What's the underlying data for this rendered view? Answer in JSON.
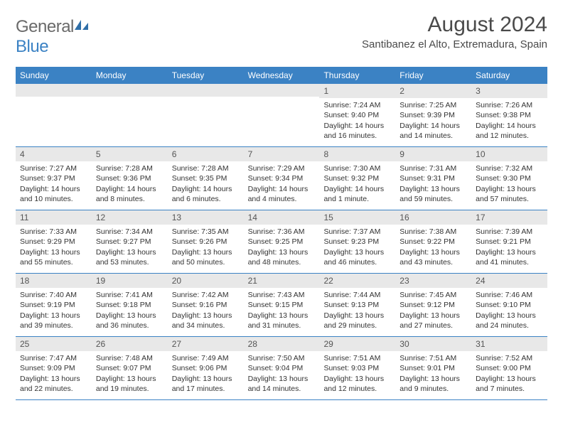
{
  "brand": {
    "general": "General",
    "blue": "Blue"
  },
  "title": "August 2024",
  "location": "Santibanez el Alto, Extremadura, Spain",
  "colors": {
    "header_bg": "#3b82c4",
    "header_fg": "#ffffff",
    "daynum_bg": "#e8e8e8",
    "rule": "#3b82c4",
    "text": "#333333",
    "title_color": "#4a4a4a"
  },
  "dow": [
    "Sunday",
    "Monday",
    "Tuesday",
    "Wednesday",
    "Thursday",
    "Friday",
    "Saturday"
  ],
  "weeks": [
    [
      {
        "n": "",
        "sr": "",
        "ss": "",
        "dl": ""
      },
      {
        "n": "",
        "sr": "",
        "ss": "",
        "dl": ""
      },
      {
        "n": "",
        "sr": "",
        "ss": "",
        "dl": ""
      },
      {
        "n": "",
        "sr": "",
        "ss": "",
        "dl": ""
      },
      {
        "n": "1",
        "sr": "Sunrise: 7:24 AM",
        "ss": "Sunset: 9:40 PM",
        "dl": "Daylight: 14 hours and 16 minutes."
      },
      {
        "n": "2",
        "sr": "Sunrise: 7:25 AM",
        "ss": "Sunset: 9:39 PM",
        "dl": "Daylight: 14 hours and 14 minutes."
      },
      {
        "n": "3",
        "sr": "Sunrise: 7:26 AM",
        "ss": "Sunset: 9:38 PM",
        "dl": "Daylight: 14 hours and 12 minutes."
      }
    ],
    [
      {
        "n": "4",
        "sr": "Sunrise: 7:27 AM",
        "ss": "Sunset: 9:37 PM",
        "dl": "Daylight: 14 hours and 10 minutes."
      },
      {
        "n": "5",
        "sr": "Sunrise: 7:28 AM",
        "ss": "Sunset: 9:36 PM",
        "dl": "Daylight: 14 hours and 8 minutes."
      },
      {
        "n": "6",
        "sr": "Sunrise: 7:28 AM",
        "ss": "Sunset: 9:35 PM",
        "dl": "Daylight: 14 hours and 6 minutes."
      },
      {
        "n": "7",
        "sr": "Sunrise: 7:29 AM",
        "ss": "Sunset: 9:34 PM",
        "dl": "Daylight: 14 hours and 4 minutes."
      },
      {
        "n": "8",
        "sr": "Sunrise: 7:30 AM",
        "ss": "Sunset: 9:32 PM",
        "dl": "Daylight: 14 hours and 1 minute."
      },
      {
        "n": "9",
        "sr": "Sunrise: 7:31 AM",
        "ss": "Sunset: 9:31 PM",
        "dl": "Daylight: 13 hours and 59 minutes."
      },
      {
        "n": "10",
        "sr": "Sunrise: 7:32 AM",
        "ss": "Sunset: 9:30 PM",
        "dl": "Daylight: 13 hours and 57 minutes."
      }
    ],
    [
      {
        "n": "11",
        "sr": "Sunrise: 7:33 AM",
        "ss": "Sunset: 9:29 PM",
        "dl": "Daylight: 13 hours and 55 minutes."
      },
      {
        "n": "12",
        "sr": "Sunrise: 7:34 AM",
        "ss": "Sunset: 9:27 PM",
        "dl": "Daylight: 13 hours and 53 minutes."
      },
      {
        "n": "13",
        "sr": "Sunrise: 7:35 AM",
        "ss": "Sunset: 9:26 PM",
        "dl": "Daylight: 13 hours and 50 minutes."
      },
      {
        "n": "14",
        "sr": "Sunrise: 7:36 AM",
        "ss": "Sunset: 9:25 PM",
        "dl": "Daylight: 13 hours and 48 minutes."
      },
      {
        "n": "15",
        "sr": "Sunrise: 7:37 AM",
        "ss": "Sunset: 9:23 PM",
        "dl": "Daylight: 13 hours and 46 minutes."
      },
      {
        "n": "16",
        "sr": "Sunrise: 7:38 AM",
        "ss": "Sunset: 9:22 PM",
        "dl": "Daylight: 13 hours and 43 minutes."
      },
      {
        "n": "17",
        "sr": "Sunrise: 7:39 AM",
        "ss": "Sunset: 9:21 PM",
        "dl": "Daylight: 13 hours and 41 minutes."
      }
    ],
    [
      {
        "n": "18",
        "sr": "Sunrise: 7:40 AM",
        "ss": "Sunset: 9:19 PM",
        "dl": "Daylight: 13 hours and 39 minutes."
      },
      {
        "n": "19",
        "sr": "Sunrise: 7:41 AM",
        "ss": "Sunset: 9:18 PM",
        "dl": "Daylight: 13 hours and 36 minutes."
      },
      {
        "n": "20",
        "sr": "Sunrise: 7:42 AM",
        "ss": "Sunset: 9:16 PM",
        "dl": "Daylight: 13 hours and 34 minutes."
      },
      {
        "n": "21",
        "sr": "Sunrise: 7:43 AM",
        "ss": "Sunset: 9:15 PM",
        "dl": "Daylight: 13 hours and 31 minutes."
      },
      {
        "n": "22",
        "sr": "Sunrise: 7:44 AM",
        "ss": "Sunset: 9:13 PM",
        "dl": "Daylight: 13 hours and 29 minutes."
      },
      {
        "n": "23",
        "sr": "Sunrise: 7:45 AM",
        "ss": "Sunset: 9:12 PM",
        "dl": "Daylight: 13 hours and 27 minutes."
      },
      {
        "n": "24",
        "sr": "Sunrise: 7:46 AM",
        "ss": "Sunset: 9:10 PM",
        "dl": "Daylight: 13 hours and 24 minutes."
      }
    ],
    [
      {
        "n": "25",
        "sr": "Sunrise: 7:47 AM",
        "ss": "Sunset: 9:09 PM",
        "dl": "Daylight: 13 hours and 22 minutes."
      },
      {
        "n": "26",
        "sr": "Sunrise: 7:48 AM",
        "ss": "Sunset: 9:07 PM",
        "dl": "Daylight: 13 hours and 19 minutes."
      },
      {
        "n": "27",
        "sr": "Sunrise: 7:49 AM",
        "ss": "Sunset: 9:06 PM",
        "dl": "Daylight: 13 hours and 17 minutes."
      },
      {
        "n": "28",
        "sr": "Sunrise: 7:50 AM",
        "ss": "Sunset: 9:04 PM",
        "dl": "Daylight: 13 hours and 14 minutes."
      },
      {
        "n": "29",
        "sr": "Sunrise: 7:51 AM",
        "ss": "Sunset: 9:03 PM",
        "dl": "Daylight: 13 hours and 12 minutes."
      },
      {
        "n": "30",
        "sr": "Sunrise: 7:51 AM",
        "ss": "Sunset: 9:01 PM",
        "dl": "Daylight: 13 hours and 9 minutes."
      },
      {
        "n": "31",
        "sr": "Sunrise: 7:52 AM",
        "ss": "Sunset: 9:00 PM",
        "dl": "Daylight: 13 hours and 7 minutes."
      }
    ]
  ]
}
